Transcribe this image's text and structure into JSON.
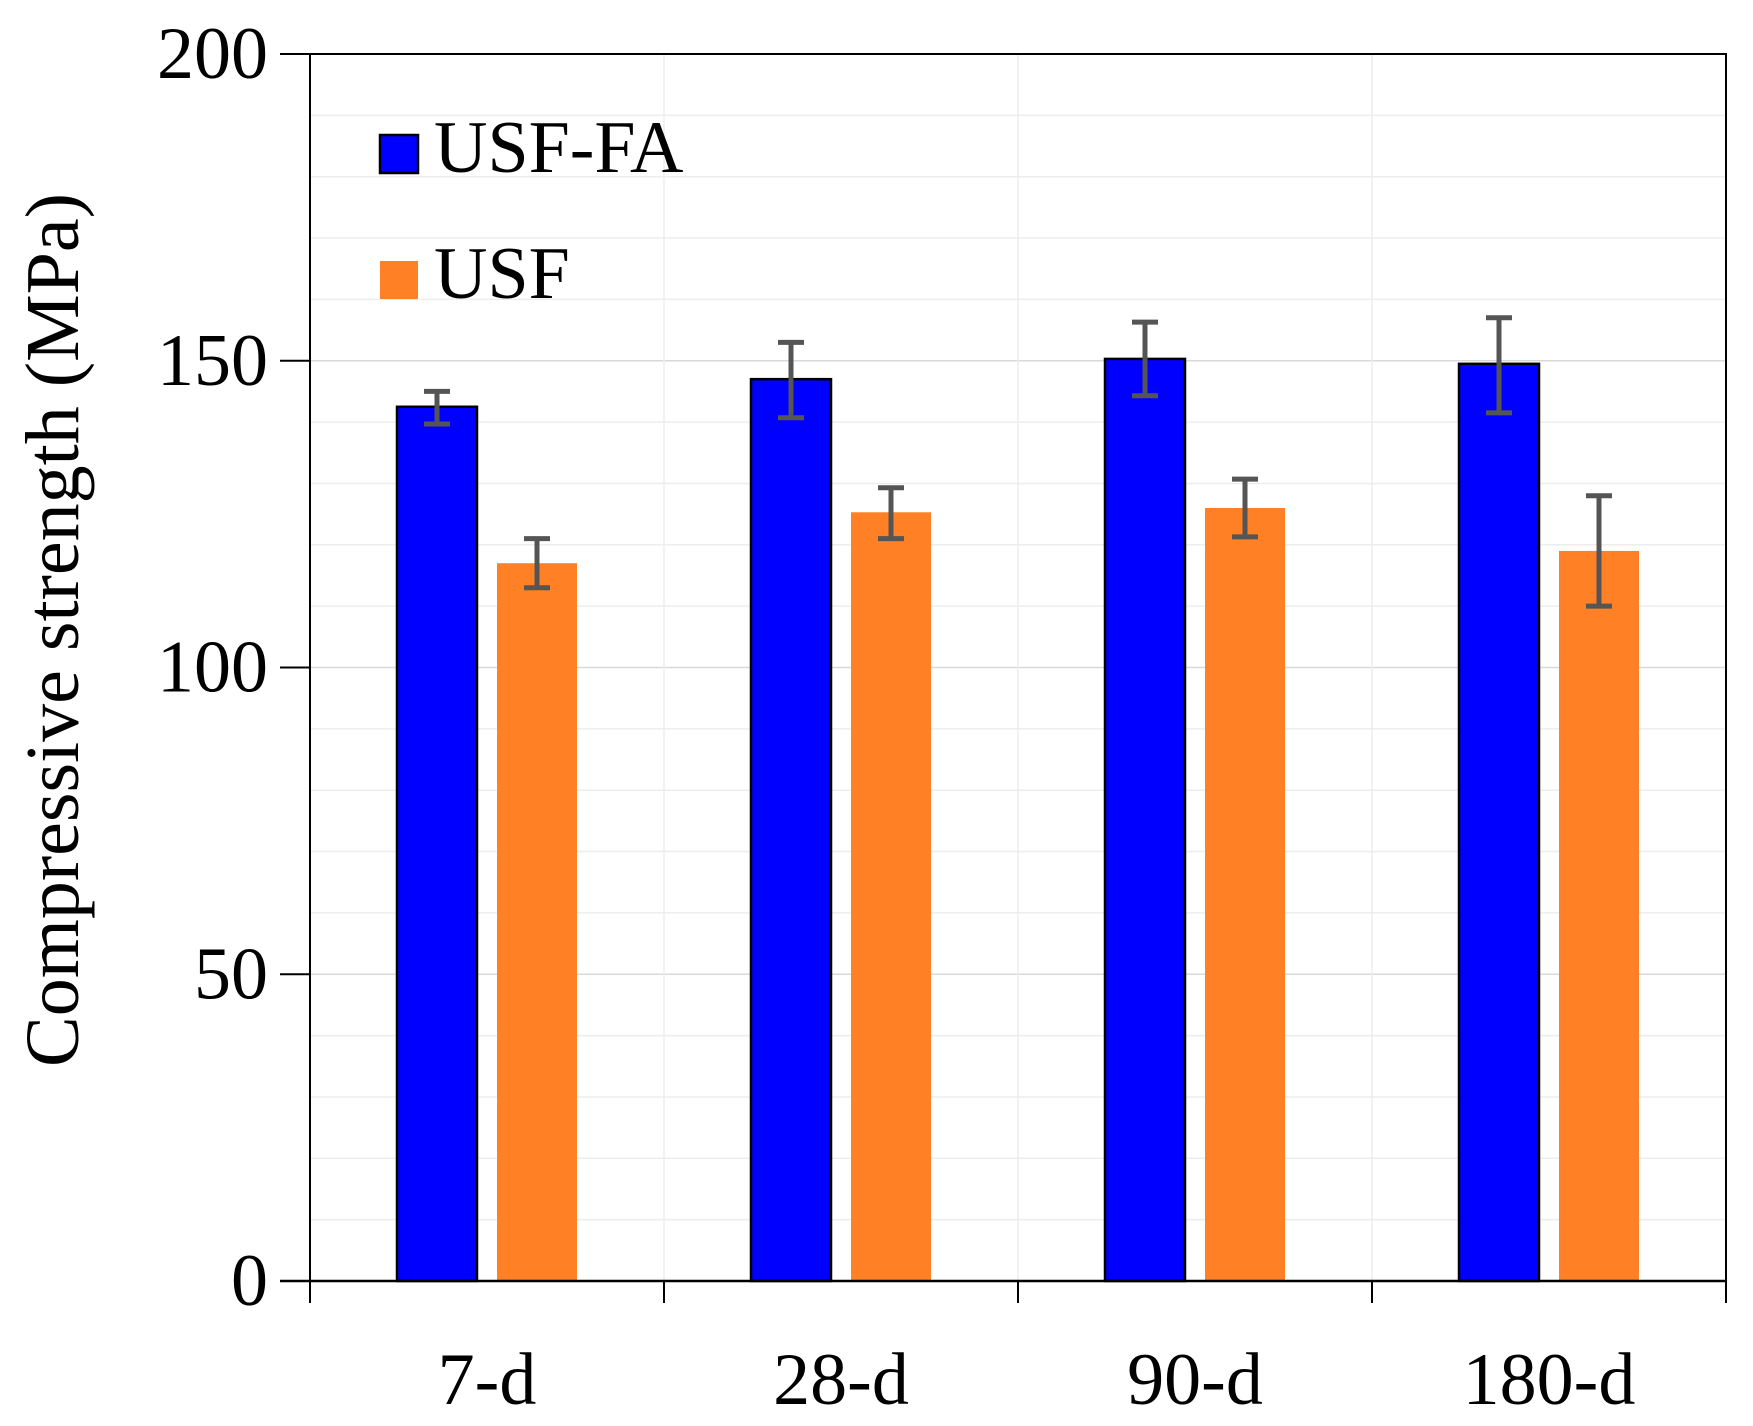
{
  "chart_data": {
    "type": "bar",
    "title": "",
    "xlabel": "",
    "ylabel": "Compressive strength (MPa)",
    "categories": [
      "7-d",
      "28-d",
      "90-d",
      "180-d"
    ],
    "ylim": [
      0,
      200
    ],
    "yticks": [
      0,
      50,
      100,
      150,
      200
    ],
    "ytick_labels": [
      "0",
      "50",
      "100",
      "150",
      "200"
    ],
    "minor_grid_step": 10,
    "grid": true,
    "legend_position": "top-left",
    "series": [
      {
        "name": "USF-FA",
        "color": "#0000ff",
        "outline": "#000000",
        "values": [
          142.5,
          147,
          150.3,
          149.5
        ],
        "error_low": [
          139.7,
          140.7,
          144.3,
          141.5
        ],
        "error_high": [
          145,
          153,
          156.3,
          157
        ]
      },
      {
        "name": "USF",
        "color": "#ff8025",
        "outline": "none",
        "values": [
          117,
          125.3,
          126,
          119
        ],
        "error_low": [
          113,
          121,
          121.3,
          110
        ],
        "error_high": [
          121,
          129.3,
          130.7,
          128
        ]
      }
    ],
    "error_bar_color": "#555555"
  }
}
